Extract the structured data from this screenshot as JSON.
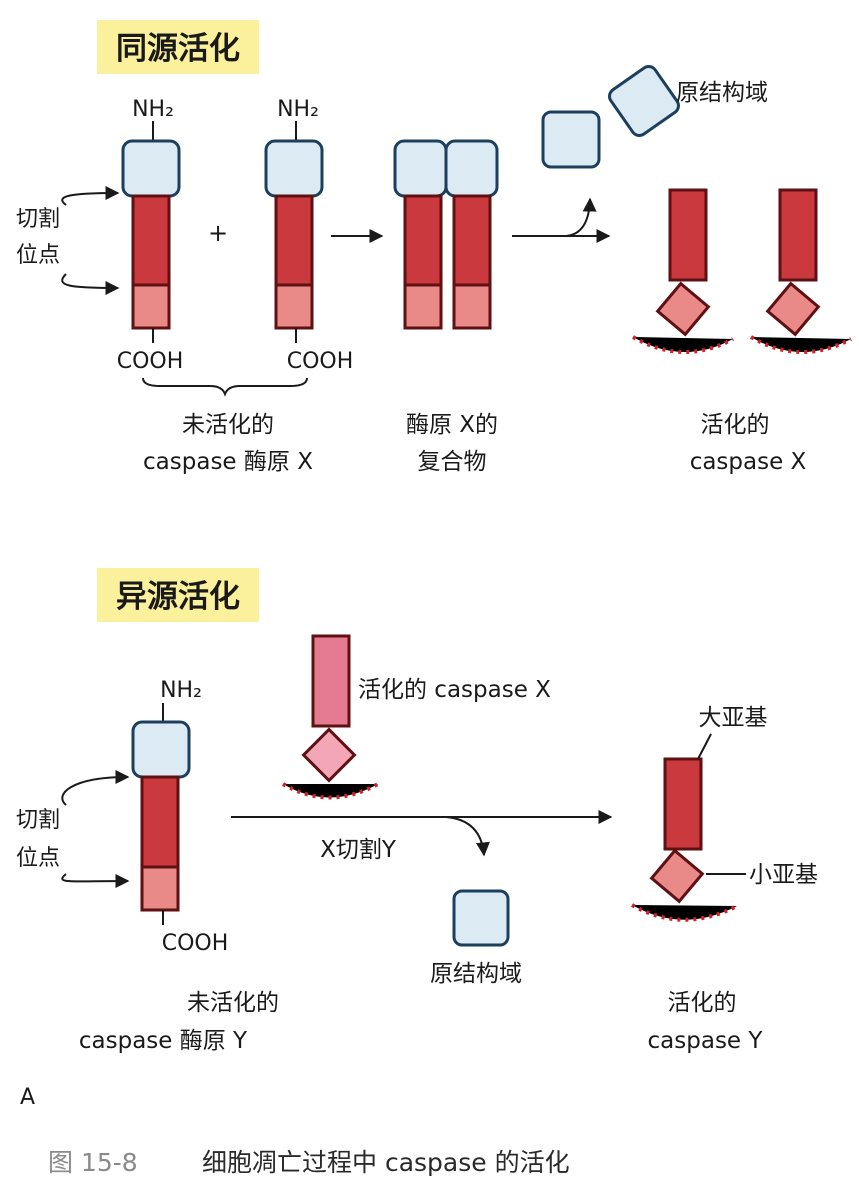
{
  "homologous": {
    "title": "同源活化",
    "nh2_left": "NH₂",
    "nh2_right": "NH₂",
    "cooh_left": "COOH",
    "cooh_right": "COOH",
    "plus": "+",
    "cleavage_line1": "切割",
    "cleavage_line2": "位点",
    "prodomain_label": "原结构域",
    "inactive_line1": "未活化的",
    "inactive_line2": "caspase 酶原 X",
    "complex_line1": "酶原 X的",
    "complex_line2": "复合物",
    "active_line1": "活化的",
    "active_line2": "caspase  X"
  },
  "heterologous": {
    "title": "异源活化",
    "nh2": "NH₂",
    "cooh": "COOH",
    "cleavage_line1": "切割",
    "cleavage_line2": "位点",
    "active_x_label": "活化的 caspase X",
    "arrow_label": "X切割Y",
    "prodomain_label": "原结构域",
    "large_subunit": "大亚基",
    "small_subunit": "小亚基",
    "inactive_line1": "未活化的",
    "inactive_line2": "caspase 酶原 Y",
    "active_line1": "活化的",
    "active_line2": "caspase Y"
  },
  "panel_label": "A",
  "caption": {
    "number": "图 15-8",
    "text": "细胞凋亡过程中 caspase 的活化"
  },
  "colors": {
    "title_bg": "#fbf19c",
    "prodomain": "#dceaf3",
    "large_subunit": "#c9393e",
    "small_subunit": "#e98a88",
    "activity_rays": "#d42027",
    "caption_gray": "#8a8a8a"
  }
}
